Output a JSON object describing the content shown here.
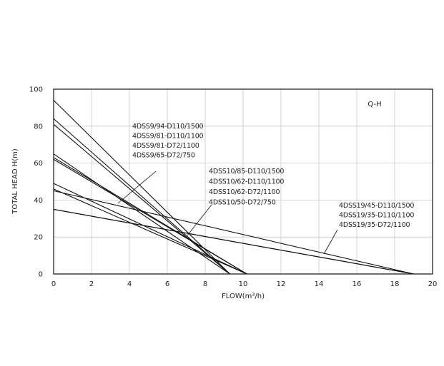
{
  "chart_data": {
    "type": "line",
    "title": "Q-H",
    "xlabel": "FLOW(m³/h)",
    "ylabel": "TOTAL HEAD H(m)",
    "xlim": [
      0,
      20
    ],
    "ylim": [
      0,
      100
    ],
    "xticks": [
      0,
      2,
      4,
      6,
      8,
      10,
      12,
      14,
      16,
      18,
      20
    ],
    "yticks": [
      0,
      20,
      40,
      60,
      80,
      100
    ],
    "grid": true,
    "groups": [
      {
        "labels": [
          "4DSS9/94-D110/1500",
          "4DSS9/81-D110/1100",
          "4DSS9/81-D72/1100",
          "4DSS9/65-D72/750"
        ]
      },
      {
        "labels": [
          "4DSS10/85-D110/1500",
          "4DSS10/62-D110/1100",
          "4DSS10/62-D72/1100",
          "4DSS10/50-D72/750"
        ]
      },
      {
        "labels": [
          "4DSS19/45-D110/1500",
          "4DSS19/35-D110/1100",
          "4DSS19/35-D72/1100"
        ]
      }
    ],
    "series": [
      {
        "name": "4DSS9/94-D110/1500",
        "x": [
          0,
          9.3
        ],
        "y": [
          94,
          0
        ]
      },
      {
        "name": "4DSS9/81-D110/1100",
        "x": [
          0,
          9.3
        ],
        "y": [
          84,
          0
        ]
      },
      {
        "name": "4DSS9/81-D72/1100",
        "x": [
          0,
          9.3
        ],
        "y": [
          81,
          0
        ]
      },
      {
        "name": "4DSS9/65-D72/750",
        "x": [
          0,
          9.3
        ],
        "y": [
          65,
          0
        ]
      },
      {
        "name": "4DSS10/85-D110/1500",
        "x": [
          0,
          10.2
        ],
        "y": [
          63,
          0
        ]
      },
      {
        "name": "4DSS10/62-D110/1100",
        "x": [
          0,
          10.2
        ],
        "y": [
          62,
          0
        ]
      },
      {
        "name": "4DSS10/62-D72/1100",
        "x": [
          0,
          10.2
        ],
        "y": [
          49,
          0
        ]
      },
      {
        "name": "4DSS10/50-D72/750",
        "x": [
          0,
          10.2
        ],
        "y": [
          46,
          0
        ]
      },
      {
        "name": "4DSS19/45-D110/1500",
        "x": [
          0,
          19.0
        ],
        "y": [
          45,
          0
        ]
      },
      {
        "name": "4DSS19/35-D110/1100",
        "x": [
          0,
          19.0
        ],
        "y": [
          35,
          0
        ]
      },
      {
        "name": "4DSS19/35-D72/1100",
        "x": [
          0,
          19.0
        ],
        "y": [
          35,
          0
        ]
      }
    ]
  }
}
